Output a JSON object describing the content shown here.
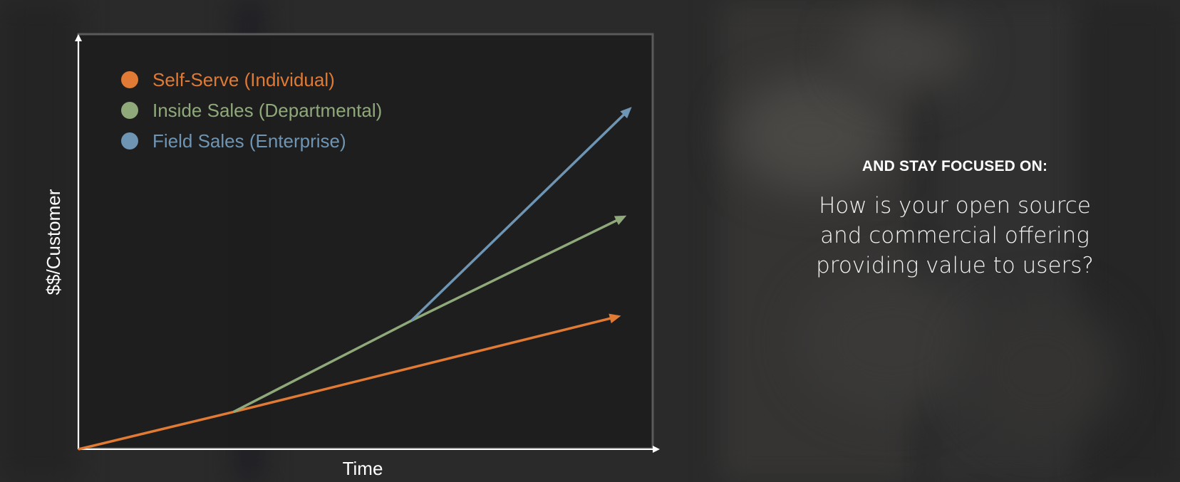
{
  "chart_data": {
    "type": "line",
    "title": "",
    "xlabel": "Time",
    "ylabel": "$$/Customer",
    "xlim": [
      0,
      100
    ],
    "ylim": [
      0,
      100
    ],
    "grid": false,
    "legend_position": "top-left",
    "series": [
      {
        "name": "Self-Serve (Individual)",
        "color": "#e07a34",
        "points": [
          [
            0,
            0
          ],
          [
            27,
            9
          ],
          [
            94,
            32
          ]
        ]
      },
      {
        "name": "Inside Sales (Departmental)",
        "color": "#8fa97a",
        "points": [
          [
            27,
            9
          ],
          [
            58,
            31
          ],
          [
            95,
            56
          ]
        ]
      },
      {
        "name": "Field Sales (Enterprise)",
        "color": "#6e95b3",
        "points": [
          [
            58,
            31
          ],
          [
            96,
            82
          ]
        ]
      }
    ]
  },
  "panel": {
    "heading": "AND STAY FOCUSED ON:",
    "question": "How is your open source and commercial offering providing value to users?"
  }
}
